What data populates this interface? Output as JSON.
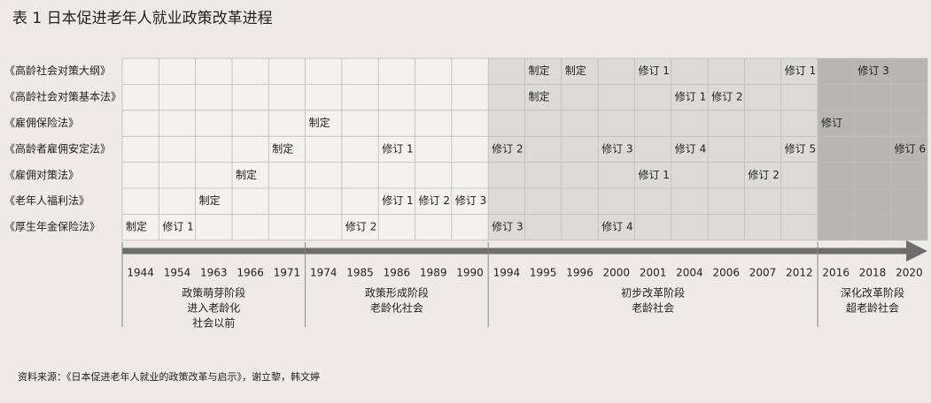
{
  "header": {
    "title": "表 1  日本促进老年人就业政策改革进程"
  },
  "years": [
    "1944",
    "1954",
    "1963",
    "1966",
    "1971",
    "1974",
    "1985",
    "1986",
    "1989",
    "1990",
    "1994",
    "1995",
    "1996",
    "2000",
    "2001",
    "2004",
    "2006",
    "2007",
    "2012",
    "2016",
    "2018",
    "2020"
  ],
  "rows": [
    {
      "label": "《高龄社会对策大纲》",
      "cells": [
        null,
        null,
        null,
        null,
        null,
        null,
        null,
        null,
        null,
        null,
        null,
        "制定",
        "制定",
        null,
        "修订 1",
        null,
        null,
        null,
        "修订 1",
        null,
        "修订 3",
        null
      ]
    },
    {
      "label": "《高龄社会对策基本法》",
      "cells": [
        null,
        null,
        null,
        null,
        null,
        null,
        null,
        null,
        null,
        null,
        null,
        "制定",
        null,
        null,
        null,
        "修订 1",
        "修订 2",
        null,
        null,
        null,
        null,
        null
      ]
    },
    {
      "label": "《雇佣保险法》",
      "cells": [
        null,
        null,
        null,
        null,
        null,
        "制定",
        null,
        null,
        null,
        null,
        null,
        null,
        null,
        null,
        null,
        null,
        null,
        null,
        null,
        "修订",
        null,
        null
      ]
    },
    {
      "label": "《高龄者雇佣安定法》",
      "cells": [
        null,
        null,
        null,
        null,
        "制定",
        null,
        null,
        "修订 1",
        null,
        null,
        "修订 2",
        null,
        null,
        "修订 3",
        null,
        "修订 4",
        null,
        null,
        "修订 5",
        null,
        null,
        "修订 6"
      ]
    },
    {
      "label": "《雇佣对策法》",
      "cells": [
        null,
        null,
        null,
        "制定",
        null,
        null,
        null,
        null,
        null,
        null,
        null,
        null,
        null,
        null,
        "修订 1",
        null,
        null,
        "修订 2",
        null,
        null,
        null,
        null
      ]
    },
    {
      "label": "《老年人福利法》",
      "cells": [
        null,
        null,
        "制定",
        null,
        null,
        null,
        null,
        "修订 1",
        "修订 2",
        "修订 3",
        null,
        null,
        null,
        null,
        null,
        null,
        null,
        null,
        null,
        null,
        null,
        null
      ]
    },
    {
      "label": "《厚生年金保险法》",
      "cells": [
        "制定",
        "修订 1",
        null,
        null,
        null,
        null,
        "修订 2",
        null,
        null,
        null,
        "修订 3",
        null,
        null,
        "修订 4",
        null,
        null,
        null,
        null,
        null,
        null,
        null,
        null
      ]
    }
  ],
  "phases": [
    {
      "span": 5,
      "lines": [
        "政策萌芽阶段",
        "进入老龄化",
        "社会以前"
      ]
    },
    {
      "span": 5,
      "lines": [
        "政策形成阶段",
        "老龄化社会"
      ]
    },
    {
      "span": 9,
      "lines": [
        "初步改革阶段",
        "老龄社会"
      ]
    },
    {
      "span": 3,
      "lines": [
        "深化改革阶段",
        "超老龄社会"
      ]
    }
  ],
  "source": "资料来源：《日本促进老年人就业的政策改革与启示》，谢立黎，韩文婷"
}
